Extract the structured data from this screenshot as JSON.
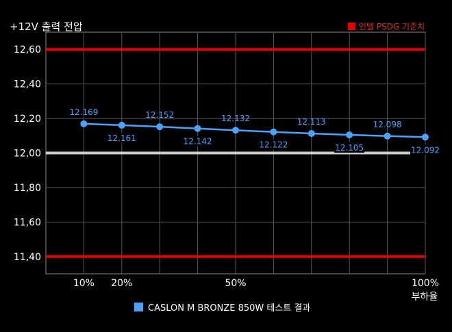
{
  "chart_data": {
    "type": "line",
    "title": "+12V 출력 전압",
    "xlabel": "부하율",
    "ylabel": "",
    "x": [
      10,
      20,
      30,
      40,
      50,
      60,
      70,
      80,
      90,
      100
    ],
    "xlim": [
      0,
      100
    ],
    "x_tick_labels": [
      {
        "x": 10,
        "label": "10%"
      },
      {
        "x": 20,
        "label": "20%"
      },
      {
        "x": 50,
        "label": "50%"
      },
      {
        "x": 100,
        "label": "100%"
      }
    ],
    "ylim": [
      11.3,
      12.7
    ],
    "y_ticks": [
      11.4,
      11.6,
      11.8,
      12.0,
      12.2,
      12.4,
      12.6
    ],
    "y_tick_labels": [
      "11,40",
      "11,60",
      "11,80",
      "12,00",
      "12,20",
      "12,40",
      "12,60"
    ],
    "grid": true,
    "series": [
      {
        "name": "CASLON M BRONZE 850W 테스트 결과",
        "color": "#4aa3ff",
        "values": [
          12.169,
          12.161,
          12.152,
          12.142,
          12.132,
          12.122,
          12.113,
          12.105,
          12.098,
          12.092
        ],
        "data_labels": [
          "12.169",
          "12.161",
          "12.152",
          "12.142",
          "12.132",
          "12.122",
          "12.113",
          "12.105",
          "12.098",
          "12.092"
        ]
      }
    ],
    "reference_lines": [
      {
        "name": "인텔 PSDG 기준치",
        "values": [
          11.4,
          12.6
        ],
        "color": "#e00000"
      },
      {
        "value": 12.0,
        "color": "#cccccc"
      }
    ],
    "legends": {
      "reference_position": "top-right",
      "series_position": "bottom"
    }
  }
}
